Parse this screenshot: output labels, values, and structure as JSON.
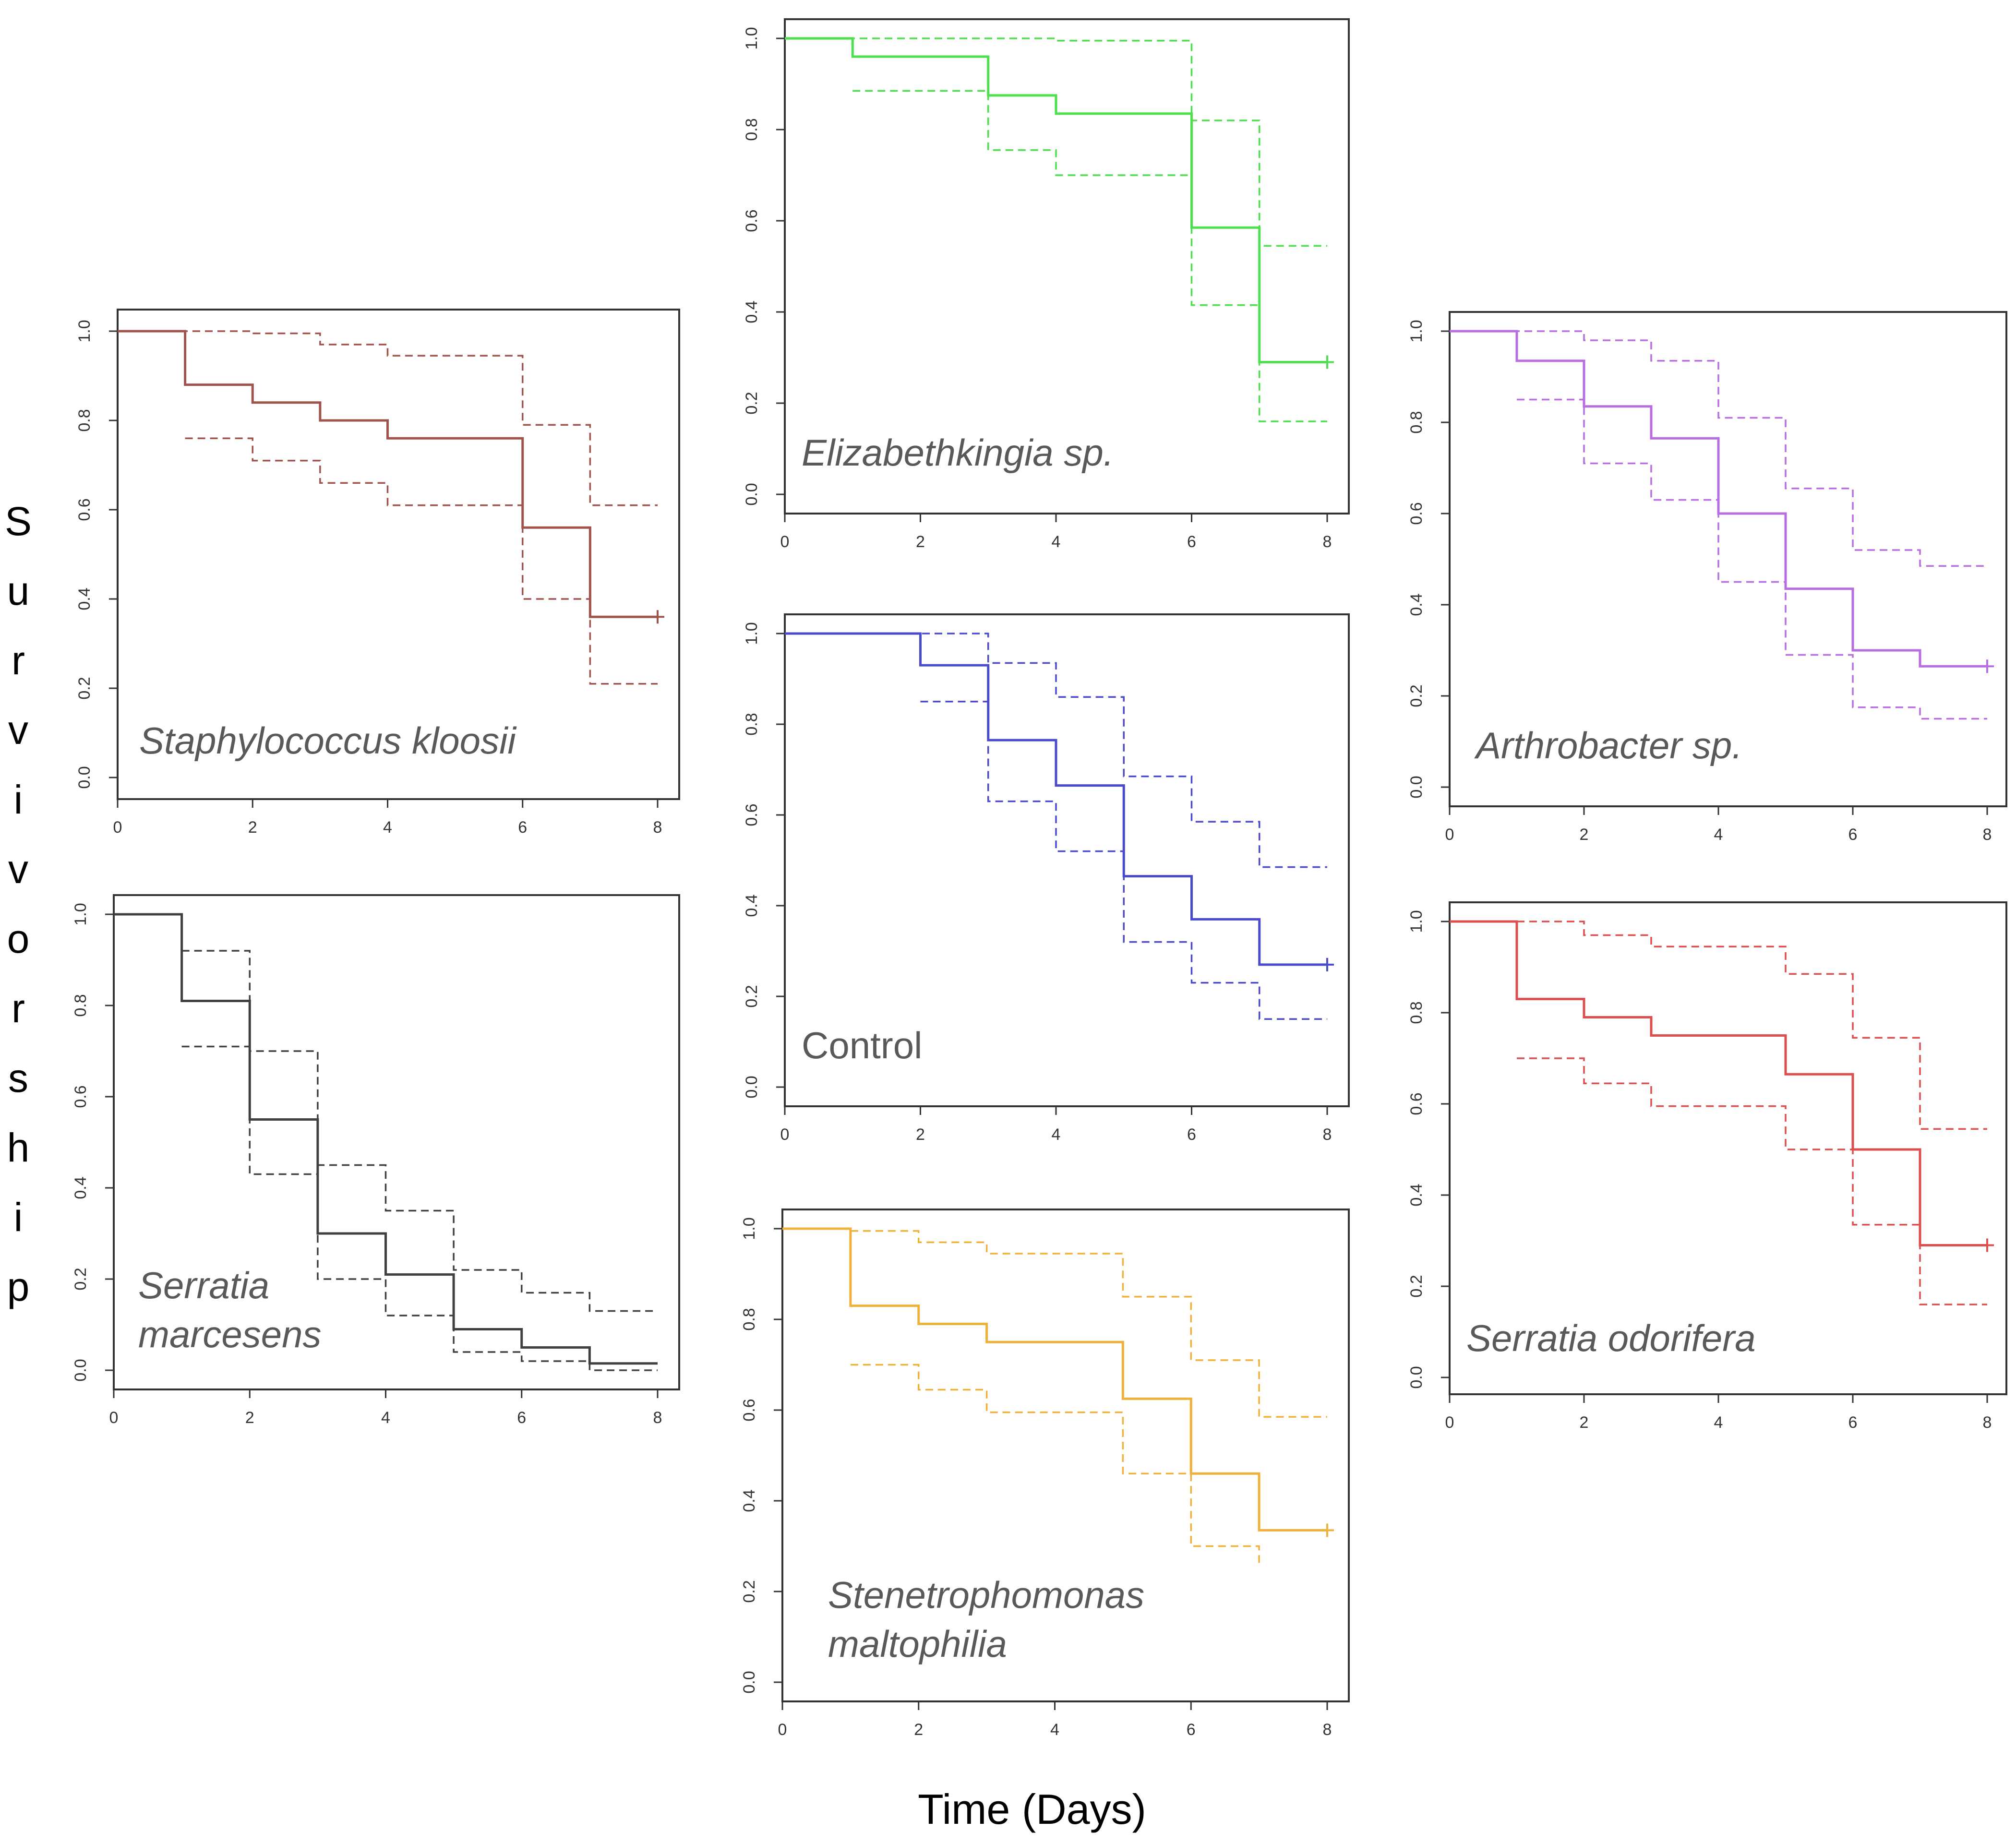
{
  "figure": {
    "y_axis_label": "Survivorship",
    "x_axis_label": "Time (Days)"
  },
  "chart_data": [
    {
      "id": "staphylococcus",
      "type": "line",
      "subtype": "kaplan-meier-step",
      "title_lines": [
        "Staphylococcus kloosii"
      ],
      "title_italic": true,
      "color": "#a0524d",
      "xlim": [
        0,
        8
      ],
      "ylim": [
        0,
        1
      ],
      "x_ticks": [
        "0",
        "2",
        "4",
        "6",
        "8"
      ],
      "y_ticks": [
        "0.0",
        "0.2",
        "0.4",
        "0.6",
        "0.8",
        "1.0"
      ],
      "series": [
        {
          "name": "survival",
          "style": "solid",
          "x": [
            0,
            1,
            2,
            3,
            4,
            6,
            7,
            8
          ],
          "y": [
            1.0,
            0.88,
            0.84,
            0.8,
            0.76,
            0.56,
            0.36,
            0.36
          ]
        },
        {
          "name": "upper 95% CI",
          "style": "dashed",
          "x": [
            0,
            1,
            2,
            3,
            4,
            6,
            7,
            8
          ],
          "y": [
            1.0,
            1.0,
            0.995,
            0.97,
            0.945,
            0.79,
            0.61,
            0.61
          ]
        },
        {
          "name": "lower 95% CI",
          "style": "dashed",
          "x": [
            1,
            2,
            3,
            4,
            6,
            7,
            8
          ],
          "y": [
            0.76,
            0.71,
            0.66,
            0.61,
            0.4,
            0.21,
            0.21
          ]
        }
      ],
      "censor": {
        "x": 8,
        "y": 0.36
      }
    },
    {
      "id": "serratia-marcesens",
      "type": "line",
      "subtype": "kaplan-meier-step",
      "title_lines": [
        "Serratia",
        "marcesens"
      ],
      "title_italic": true,
      "color": "#404040",
      "xlim": [
        0,
        8
      ],
      "ylim": [
        0,
        1
      ],
      "x_ticks": [
        "0",
        "2",
        "4",
        "6",
        "8"
      ],
      "y_ticks": [
        "0.0",
        "0.2",
        "0.4",
        "0.6",
        "0.8",
        "1.0"
      ],
      "series": [
        {
          "name": "survival",
          "style": "solid",
          "x": [
            0,
            1,
            2,
            3,
            4,
            5,
            6,
            7,
            8
          ],
          "y": [
            1.0,
            0.81,
            0.55,
            0.3,
            0.21,
            0.09,
            0.05,
            0.015,
            0.015
          ]
        },
        {
          "name": "upper 95% CI",
          "style": "dashed",
          "x": [
            1,
            2,
            3,
            4,
            5,
            6,
            7,
            8
          ],
          "y": [
            0.92,
            0.7,
            0.45,
            0.35,
            0.22,
            0.17,
            0.13,
            0.13
          ]
        },
        {
          "name": "lower 95% CI",
          "style": "dashed",
          "x": [
            1,
            2,
            3,
            4,
            5,
            6,
            7,
            8
          ],
          "y": [
            0.71,
            0.43,
            0.2,
            0.12,
            0.04,
            0.02,
            0.0,
            0.0
          ]
        }
      ],
      "censor": null
    },
    {
      "id": "elizabethkingia",
      "type": "line",
      "subtype": "kaplan-meier-step",
      "title_lines": [
        "Elizabethkingia sp."
      ],
      "title_italic": true,
      "color": "#4de04d",
      "xlim": [
        0,
        8
      ],
      "ylim": [
        0,
        1
      ],
      "x_ticks": [
        "0",
        "2",
        "4",
        "6",
        "8"
      ],
      "y_ticks": [
        "0.0",
        "0.2",
        "0.4",
        "0.6",
        "0.8",
        "1.0"
      ],
      "series": [
        {
          "name": "survival",
          "style": "solid",
          "x": [
            0,
            1,
            3,
            4,
            6,
            7,
            8
          ],
          "y": [
            1.0,
            0.96,
            0.875,
            0.835,
            0.585,
            0.29,
            0.29
          ]
        },
        {
          "name": "upper 95% CI",
          "style": "dashed",
          "x": [
            0,
            4,
            6,
            7,
            8
          ],
          "y": [
            1.0,
            0.995,
            0.82,
            0.545,
            0.545
          ]
        },
        {
          "name": "lower 95% CI",
          "style": "dashed",
          "x": [
            1,
            3,
            4,
            6,
            7,
            8
          ],
          "y": [
            0.885,
            0.755,
            0.7,
            0.415,
            0.16,
            0.16
          ]
        }
      ],
      "censor": {
        "x": 8,
        "y": 0.29
      }
    },
    {
      "id": "control",
      "type": "line",
      "subtype": "kaplan-meier-step",
      "title_lines": [
        "Control"
      ],
      "title_italic": false,
      "color": "#4a4acc",
      "xlim": [
        0,
        8
      ],
      "ylim": [
        0,
        1
      ],
      "x_ticks": [
        "0",
        "2",
        "4",
        "6",
        "8"
      ],
      "y_ticks": [
        "0.0",
        "0.2",
        "0.4",
        "0.6",
        "0.8",
        "1.0"
      ],
      "series": [
        {
          "name": "survival",
          "style": "solid",
          "x": [
            0,
            2,
            3,
            4,
            5,
            6,
            7,
            8
          ],
          "y": [
            1.0,
            0.93,
            0.765,
            0.665,
            0.465,
            0.37,
            0.27,
            0.27
          ]
        },
        {
          "name": "upper 95% CI",
          "style": "dashed",
          "x": [
            0,
            3,
            4,
            5,
            6,
            7,
            8
          ],
          "y": [
            1.0,
            0.935,
            0.86,
            0.685,
            0.585,
            0.485,
            0.485
          ]
        },
        {
          "name": "lower 95% CI",
          "style": "dashed",
          "x": [
            2,
            3,
            4,
            5,
            6,
            7,
            8
          ],
          "y": [
            0.85,
            0.63,
            0.52,
            0.32,
            0.23,
            0.15,
            0.15
          ]
        }
      ],
      "censor": {
        "x": 8,
        "y": 0.27
      }
    },
    {
      "id": "stenetrophomonas",
      "type": "line",
      "subtype": "kaplan-meier-step",
      "title_lines": [
        "Stenetrophomonas",
        "maltophilia"
      ],
      "title_italic": true,
      "color": "#f0b13a",
      "xlim": [
        0,
        8
      ],
      "ylim": [
        0,
        1
      ],
      "x_ticks": [
        "0",
        "2",
        "4",
        "6",
        "8"
      ],
      "y_ticks": [
        "0.0",
        "0.2",
        "0.4",
        "0.6",
        "0.8",
        "1.0"
      ],
      "series": [
        {
          "name": "survival",
          "style": "solid",
          "x": [
            0,
            1,
            2,
            3,
            5,
            6,
            7,
            8
          ],
          "y": [
            1.0,
            0.83,
            0.79,
            0.75,
            0.625,
            0.46,
            0.335,
            0.335
          ]
        },
        {
          "name": "upper 95% CI",
          "style": "dashed",
          "x": [
            1,
            2,
            3,
            5,
            6,
            7,
            8
          ],
          "y": [
            0.995,
            0.97,
            0.945,
            0.85,
            0.71,
            0.585,
            0.585
          ]
        },
        {
          "name": "lower 95% CI",
          "style": "dashed",
          "x": [
            1,
            2,
            3,
            5,
            6,
            7
          ],
          "y": [
            0.7,
            0.645,
            0.595,
            0.46,
            0.3,
            0.26
          ]
        }
      ],
      "censor": {
        "x": 8,
        "y": 0.335
      }
    },
    {
      "id": "arthrobacter",
      "type": "line",
      "subtype": "kaplan-meier-step",
      "title_lines": [
        "Arthrobacter sp."
      ],
      "title_italic": true,
      "color": "#b86ee0",
      "xlim": [
        0,
        8
      ],
      "ylim": [
        0,
        1
      ],
      "x_ticks": [
        "0",
        "2",
        "4",
        "6",
        "8"
      ],
      "y_ticks": [
        "0.0",
        "0.2",
        "0.4",
        "0.6",
        "0.8",
        "1.0"
      ],
      "series": [
        {
          "name": "survival",
          "style": "solid",
          "x": [
            0,
            1,
            2,
            3,
            4,
            5,
            6,
            7,
            8
          ],
          "y": [
            1.0,
            0.935,
            0.835,
            0.765,
            0.6,
            0.435,
            0.3,
            0.265,
            0.265
          ]
        },
        {
          "name": "upper 95% CI",
          "style": "dashed",
          "x": [
            0,
            2,
            3,
            4,
            5,
            6,
            7,
            8
          ],
          "y": [
            1.0,
            0.98,
            0.935,
            0.81,
            0.655,
            0.52,
            0.485,
            0.485
          ]
        },
        {
          "name": "lower 95% CI",
          "style": "dashed",
          "x": [
            1,
            2,
            3,
            4,
            5,
            6,
            7,
            8
          ],
          "y": [
            0.85,
            0.71,
            0.63,
            0.45,
            0.29,
            0.175,
            0.15,
            0.15
          ]
        }
      ],
      "censor": {
        "x": 8,
        "y": 0.265
      }
    },
    {
      "id": "serratia-odorifera",
      "type": "line",
      "subtype": "kaplan-meier-step",
      "title_lines": [
        "Serratia odorifera"
      ],
      "title_italic": true,
      "color": "#dd4f4f",
      "xlim": [
        0,
        8
      ],
      "ylim": [
        0,
        1
      ],
      "x_ticks": [
        "0",
        "2",
        "4",
        "6",
        "8"
      ],
      "y_ticks": [
        "0.0",
        "0.2",
        "0.4",
        "0.6",
        "0.8",
        "1.0"
      ],
      "series": [
        {
          "name": "survival",
          "style": "solid",
          "x": [
            0,
            1,
            2,
            3,
            5,
            6,
            7,
            8
          ],
          "y": [
            1.0,
            0.83,
            0.79,
            0.75,
            0.665,
            0.5,
            0.29,
            0.29
          ]
        },
        {
          "name": "upper 95% CI",
          "style": "dashed",
          "x": [
            1,
            2,
            3,
            5,
            6,
            7,
            8
          ],
          "y": [
            1.0,
            0.97,
            0.945,
            0.885,
            0.745,
            0.545,
            0.545
          ]
        },
        {
          "name": "lower 95% CI",
          "style": "dashed",
          "x": [
            1,
            2,
            3,
            5,
            6,
            7,
            8
          ],
          "y": [
            0.7,
            0.645,
            0.595,
            0.5,
            0.335,
            0.16,
            0.16
          ]
        }
      ],
      "censor": {
        "x": 8,
        "y": 0.29
      }
    }
  ]
}
